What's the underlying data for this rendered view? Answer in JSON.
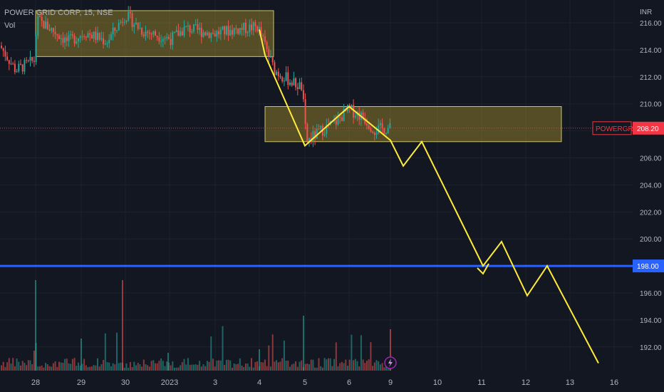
{
  "header": {
    "title": "POWER GRID CORP, 15, NSE",
    "volume_label": "Vol",
    "currency": "INR"
  },
  "price_tag": {
    "symbol": "POWERGRID",
    "value": "208.20",
    "color": "#f23645"
  },
  "hline_tag": {
    "value": "198.00",
    "color": "#2962ff"
  },
  "chart_data": {
    "type": "candlestick",
    "ylim": [
      190.8,
      217.6
    ],
    "y_ticks": [
      "192.00",
      "194.00",
      "196.00",
      "198.00",
      "200.00",
      "202.00",
      "204.00",
      "206.00",
      "208.00",
      "210.00",
      "212.00",
      "214.00",
      "216.00"
    ],
    "x_tick_labels": [
      "28",
      "29",
      "30",
      "2023",
      "3",
      "4",
      "5",
      "6",
      "9",
      "10",
      "11",
      "12",
      "13",
      "16"
    ],
    "last_price": 208.2,
    "horizontal_line": 198.0,
    "zones": [
      {
        "x_from": "27 Dec start",
        "x_to": "4 Jan",
        "y_from": 213.5,
        "y_to": 216.9
      },
      {
        "x_from": "4 Jan late",
        "x_to": "13 Jan",
        "y_from": 207.2,
        "y_to": 209.8
      }
    ],
    "projection_path": [
      [
        "4 Jan",
        215.5
      ],
      [
        "4 Jan late",
        213.6
      ],
      [
        "5 Jan",
        206.9
      ],
      [
        "6 Jan",
        209.8
      ],
      [
        "9 Jan",
        207.3
      ],
      [
        "9 Jan late",
        205.4
      ],
      [
        "10 Jan",
        207.2
      ],
      [
        "11 Jan",
        198.0
      ],
      [
        "11 Jan late",
        199.8
      ],
      [
        "12 Jan",
        195.8
      ],
      [
        "12 Jan late",
        198.0
      ],
      [
        "16 Jan",
        190.8
      ]
    ],
    "colors": {
      "up": "#26a69a",
      "down": "#ef5350",
      "projection": "#ffeb3b",
      "zone": "#8d7a2a",
      "grid": "#1e222d"
    }
  }
}
